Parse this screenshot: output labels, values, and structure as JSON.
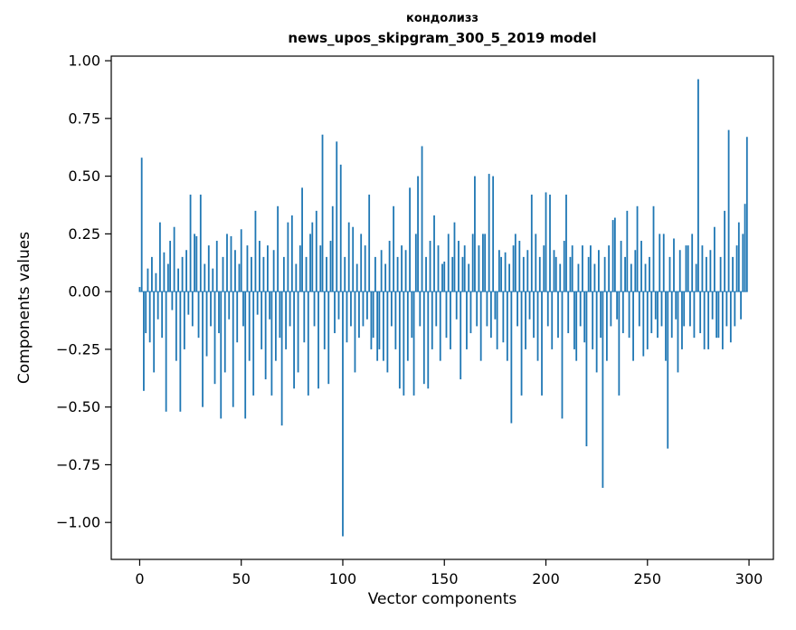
{
  "title": {
    "line1": "кондолизз",
    "line2": "news_upos_skipgram_300_5_2019 model"
  },
  "chart_data": {
    "type": "bar",
    "title": "кондолизз\nnews_upos_skipgram_300_5_2019 model",
    "xlabel": "Vector components",
    "ylabel": "Components values",
    "legend": "none",
    "grid": false,
    "xlim": [
      -14,
      312
    ],
    "ylim": [
      -1.16,
      1.02
    ],
    "xticks": [
      0,
      50,
      100,
      150,
      200,
      250,
      300
    ],
    "yticks": [
      1.0,
      0.75,
      0.5,
      0.25,
      0.0,
      -0.25,
      -0.5,
      -0.75,
      -1.0
    ],
    "ytick_labels": [
      "1.00",
      "0.75",
      "0.50",
      "0.25",
      "0.00",
      "−0.25",
      "−0.50",
      "−0.75",
      "−1.00"
    ],
    "bar_color": "#1f77b4",
    "n_components": 300,
    "values": [
      0.02,
      0.58,
      -0.43,
      -0.18,
      0.1,
      -0.22,
      0.15,
      -0.35,
      0.08,
      -0.12,
      0.3,
      -0.2,
      0.17,
      -0.52,
      0.12,
      0.22,
      -0.08,
      0.28,
      -0.3,
      0.1,
      -0.52,
      0.15,
      -0.25,
      0.18,
      -0.1,
      0.42,
      -0.15,
      0.25,
      0.24,
      -0.2,
      0.42,
      -0.5,
      0.12,
      -0.28,
      0.2,
      -0.15,
      0.1,
      -0.4,
      0.22,
      -0.18,
      -0.55,
      0.15,
      -0.35,
      0.25,
      -0.12,
      0.24,
      -0.5,
      0.18,
      -0.22,
      0.12,
      0.27,
      -0.15,
      -0.55,
      0.2,
      -0.3,
      0.15,
      -0.45,
      0.35,
      -0.1,
      0.22,
      -0.25,
      0.15,
      -0.38,
      0.2,
      -0.12,
      -0.45,
      0.18,
      -0.3,
      0.37,
      -0.2,
      -0.58,
      0.15,
      -0.25,
      0.3,
      -0.15,
      0.33,
      -0.42,
      0.12,
      -0.35,
      0.2,
      0.45,
      -0.22,
      0.15,
      -0.45,
      0.25,
      0.3,
      -0.15,
      0.35,
      -0.42,
      0.2,
      0.68,
      -0.25,
      0.15,
      -0.4,
      0.22,
      0.37,
      -0.18,
      0.65,
      -0.12,
      0.55,
      -1.06,
      0.15,
      -0.22,
      0.3,
      -0.15,
      0.28,
      -0.35,
      0.12,
      -0.2,
      0.25,
      -0.15,
      0.2,
      -0.12,
      0.42,
      -0.25,
      -0.2,
      0.15,
      -0.3,
      -0.25,
      0.18,
      -0.3,
      0.12,
      -0.35,
      0.22,
      -0.15,
      0.37,
      -0.25,
      0.15,
      -0.42,
      0.2,
      -0.45,
      0.18,
      -0.3,
      0.45,
      -0.2,
      -0.45,
      0.25,
      0.5,
      -0.15,
      0.63,
      -0.4,
      0.15,
      -0.42,
      0.22,
      -0.25,
      0.33,
      -0.15,
      0.2,
      -0.3,
      0.12,
      0.13,
      -0.2,
      0.25,
      -0.25,
      0.15,
      0.3,
      -0.12,
      0.22,
      -0.38,
      0.15,
      0.2,
      -0.25,
      0.12,
      -0.18,
      0.25,
      0.5,
      -0.15,
      0.2,
      -0.3,
      0.25,
      0.25,
      -0.15,
      0.51,
      -0.2,
      0.5,
      -0.12,
      -0.25,
      0.18,
      0.15,
      -0.22,
      0.17,
      -0.3,
      0.12,
      -0.57,
      0.2,
      0.25,
      -0.15,
      0.22,
      -0.45,
      0.15,
      -0.25,
      0.18,
      -0.12,
      0.42,
      -0.2,
      0.25,
      -0.3,
      0.15,
      -0.45,
      0.2,
      0.43,
      -0.15,
      0.42,
      -0.25,
      0.18,
      0.15,
      -0.2,
      0.12,
      -0.55,
      0.22,
      0.42,
      -0.18,
      0.15,
      0.2,
      -0.25,
      -0.3,
      0.12,
      -0.15,
      0.2,
      -0.22,
      -0.67,
      0.15,
      0.2,
      -0.25,
      0.12,
      -0.35,
      0.18,
      -0.2,
      -0.85,
      0.15,
      -0.3,
      0.2,
      -0.15,
      0.31,
      0.32,
      -0.12,
      -0.45,
      0.22,
      -0.18,
      0.15,
      0.35,
      -0.2,
      0.12,
      -0.3,
      0.18,
      0.37,
      -0.15,
      0.22,
      -0.28,
      0.12,
      -0.25,
      0.15,
      -0.18,
      0.37,
      -0.12,
      -0.2,
      0.25,
      -0.15,
      0.25,
      -0.3,
      -0.68,
      0.15,
      -0.2,
      0.23,
      -0.12,
      -0.35,
      0.18,
      -0.25,
      -0.15,
      0.2,
      0.2,
      -0.15,
      0.25,
      -0.2,
      0.12,
      0.92,
      -0.18,
      0.2,
      -0.25,
      0.15,
      -0.25,
      0.18,
      -0.12,
      0.28,
      -0.2,
      -0.2,
      0.15,
      -0.25,
      0.35,
      -0.15,
      0.7,
      -0.22,
      0.15,
      -0.15,
      0.2,
      0.3,
      -0.12,
      0.25,
      0.38,
      0.67
    ]
  }
}
